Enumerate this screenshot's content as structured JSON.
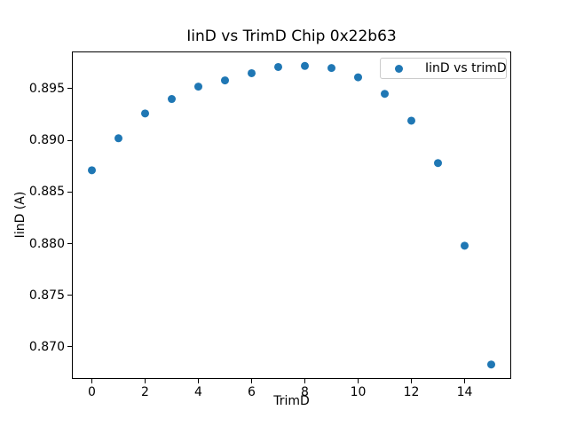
{
  "chart_data": {
    "type": "scatter",
    "title": "IinD vs TrimD Chip 0x22b63",
    "xlabel": "TrimD",
    "ylabel": "IinD (A)",
    "x": [
      0,
      1,
      2,
      3,
      4,
      5,
      6,
      7,
      8,
      9,
      10,
      11,
      12,
      13,
      14,
      15
    ],
    "y": [
      0.8871,
      0.8902,
      0.8926,
      0.894,
      0.8952,
      0.8958,
      0.8965,
      0.8971,
      0.8972,
      0.897,
      0.8961,
      0.8945,
      0.8919,
      0.8878,
      0.8798,
      0.8683
    ],
    "xlim": [
      -0.75,
      15.75
    ],
    "ylim": [
      0.8669,
      0.8986
    ],
    "xticks": [
      {
        "value": 0,
        "label": "0"
      },
      {
        "value": 2,
        "label": "2"
      },
      {
        "value": 4,
        "label": "4"
      },
      {
        "value": 6,
        "label": "6"
      },
      {
        "value": 8,
        "label": "8"
      },
      {
        "value": 10,
        "label": "10"
      },
      {
        "value": 12,
        "label": "12"
      },
      {
        "value": 14,
        "label": "14"
      }
    ],
    "yticks": [
      {
        "value": 0.87,
        "label": "0.870"
      },
      {
        "value": 0.875,
        "label": "0.875"
      },
      {
        "value": 0.88,
        "label": "0.880"
      },
      {
        "value": 0.885,
        "label": "0.885"
      },
      {
        "value": 0.89,
        "label": "0.890"
      },
      {
        "value": 0.895,
        "label": "0.895"
      }
    ],
    "grid": false,
    "marker": {
      "shape": "circle",
      "color": "#1f77b4",
      "radius_px": 4.5
    },
    "legend": {
      "position": "upper right",
      "entries": [
        {
          "label": "IinD vs trimD",
          "marker": "circle",
          "color": "#1f77b4"
        }
      ]
    },
    "colors": {
      "background": "#ffffff",
      "spine": "#000000",
      "text": "#000000"
    }
  }
}
